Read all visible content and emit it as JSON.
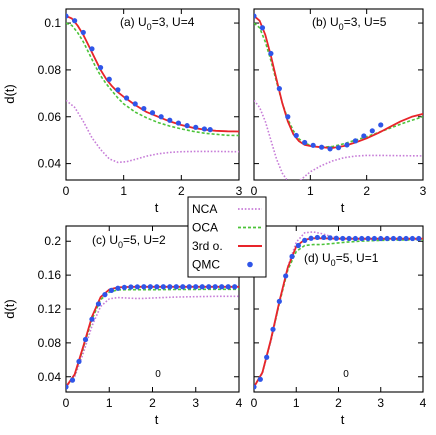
{
  "chart_data": [
    {
      "type": "line",
      "panel": "a",
      "annotation": "(a)",
      "params": [
        "U",
        "0",
        "=3, U=4"
      ],
      "ylabel": "d(t)",
      "xlabel": "t",
      "xlim": [
        0,
        3
      ],
      "ylim": [
        0.033,
        0.106
      ],
      "xticks": [
        "0",
        "1",
        "2",
        "3"
      ],
      "yticks": [
        0.04,
        0.06,
        0.08,
        0.1
      ],
      "ytick_labels": [
        "0.04",
        "0.06",
        "0.08",
        "0.1"
      ],
      "series": [
        {
          "name": "NCA",
          "x": [
            0,
            0.15,
            0.3,
            0.45,
            0.6,
            0.75,
            0.9,
            1.05,
            1.2,
            1.4,
            1.6,
            1.8,
            2.0,
            2.3,
            2.6,
            2.9,
            3.0
          ],
          "y": [
            0.067,
            0.064,
            0.058,
            0.051,
            0.046,
            0.042,
            0.0405,
            0.0408,
            0.0418,
            0.0432,
            0.0442,
            0.0448,
            0.0451,
            0.0452,
            0.0452,
            0.0451,
            0.0451
          ]
        },
        {
          "name": "OCA",
          "x": [
            0,
            0.1,
            0.2,
            0.3,
            0.4,
            0.5,
            0.6,
            0.7,
            0.8,
            0.9,
            1.0,
            1.2,
            1.4,
            1.6,
            1.8,
            2.0,
            2.2,
            2.4,
            2.6,
            2.8,
            3.0
          ],
          "y": [
            0.1,
            0.099,
            0.096,
            0.092,
            0.087,
            0.082,
            0.0775,
            0.074,
            0.071,
            0.068,
            0.0655,
            0.062,
            0.0595,
            0.0575,
            0.056,
            0.0548,
            0.0538,
            0.053,
            0.0525,
            0.0521,
            0.052
          ]
        },
        {
          "name": "3rd o.",
          "x": [
            0,
            0.1,
            0.2,
            0.3,
            0.4,
            0.5,
            0.6,
            0.7,
            0.8,
            0.9,
            1.0,
            1.2,
            1.4,
            1.6,
            1.8,
            2.0,
            2.2,
            2.4,
            2.6,
            2.8,
            3.0
          ],
          "y": [
            0.103,
            0.102,
            0.099,
            0.095,
            0.09,
            0.085,
            0.08,
            0.076,
            0.073,
            0.0705,
            0.0685,
            0.065,
            0.062,
            0.06,
            0.058,
            0.0565,
            0.0553,
            0.0545,
            0.054,
            0.0538,
            0.0537
          ]
        },
        {
          "name": "QMC",
          "x": [
            0,
            0.15,
            0.3,
            0.45,
            0.6,
            0.75,
            0.9,
            1.05,
            1.2,
            1.35,
            1.5,
            1.65,
            1.8,
            1.95,
            2.1,
            2.25,
            2.4,
            2.5
          ],
          "y": [
            0.103,
            0.101,
            0.096,
            0.089,
            0.081,
            0.076,
            0.0715,
            0.068,
            0.0655,
            0.0635,
            0.0617,
            0.06,
            0.0585,
            0.0573,
            0.0562,
            0.0555,
            0.0548,
            0.0545
          ]
        }
      ]
    },
    {
      "type": "line",
      "panel": "b",
      "annotation": "(b)",
      "params": [
        "U",
        "0",
        "=3, U=5"
      ],
      "ylabel": "",
      "xlabel": "t",
      "xlim": [
        0,
        3
      ],
      "ylim": [
        0.033,
        0.106
      ],
      "xticks": [
        "0",
        "1",
        "2",
        "3"
      ],
      "yticks": [
        0.04,
        0.06,
        0.08,
        0.1
      ],
      "ytick_labels": [],
      "series": [
        {
          "name": "NCA",
          "x": [
            0,
            0.1,
            0.2,
            0.3,
            0.4,
            0.5,
            0.6,
            0.7,
            0.8,
            0.9,
            1.0,
            1.2,
            1.4,
            1.6,
            1.8,
            2.0,
            2.2,
            2.5,
            3.0
          ],
          "y": [
            0.067,
            0.064,
            0.058,
            0.05,
            0.042,
            0.036,
            0.0325,
            0.0315,
            0.0325,
            0.0345,
            0.0365,
            0.0392,
            0.0412,
            0.0425,
            0.0432,
            0.0435,
            0.0435,
            0.0434,
            0.0433
          ]
        },
        {
          "name": "OCA",
          "x": [
            0,
            0.1,
            0.2,
            0.3,
            0.4,
            0.5,
            0.6,
            0.7,
            0.8,
            0.9,
            1.0,
            1.1,
            1.2,
            1.4,
            1.6,
            1.8,
            2.0,
            2.2,
            2.4,
            2.6,
            2.8,
            3.0
          ],
          "y": [
            0.1,
            0.098,
            0.092,
            0.084,
            0.075,
            0.066,
            0.059,
            0.054,
            0.0505,
            0.0488,
            0.0478,
            0.0472,
            0.047,
            0.0473,
            0.0485,
            0.05,
            0.0515,
            0.0532,
            0.055,
            0.0568,
            0.0585,
            0.06
          ]
        },
        {
          "name": "3rd o.",
          "x": [
            0,
            0.1,
            0.2,
            0.3,
            0.4,
            0.5,
            0.6,
            0.7,
            0.8,
            0.9,
            1.0,
            1.1,
            1.2,
            1.3,
            1.4,
            1.6,
            1.8,
            2.0,
            2.2,
            2.4,
            2.6,
            2.8,
            3.0
          ],
          "y": [
            0.103,
            0.101,
            0.095,
            0.086,
            0.076,
            0.066,
            0.058,
            0.0525,
            0.0495,
            0.048,
            0.0475,
            0.0472,
            0.047,
            0.0468,
            0.0467,
            0.0475,
            0.049,
            0.0508,
            0.053,
            0.0555,
            0.058,
            0.06,
            0.0612
          ]
        },
        {
          "name": "QMC",
          "x": [
            0,
            0.15,
            0.3,
            0.45,
            0.6,
            0.75,
            0.9,
            1.05,
            1.2,
            1.35,
            1.5,
            1.65,
            1.8,
            1.95,
            2.1,
            2.25
          ],
          "y": [
            0.103,
            0.098,
            0.087,
            0.072,
            0.06,
            0.052,
            0.049,
            0.0478,
            0.047,
            0.0463,
            0.0468,
            0.048,
            0.0497,
            0.0518,
            0.054,
            0.0565
          ]
        }
      ]
    },
    {
      "type": "line",
      "panel": "c",
      "annotation": "(c)",
      "params": [
        "U",
        "0",
        "=5, U=2"
      ],
      "ylabel": "d(t)",
      "xlabel": "t",
      "xlim": [
        0,
        4
      ],
      "ylim": [
        0.022,
        0.218
      ],
      "xticks": [
        "0",
        "1",
        "2",
        "3",
        "4"
      ],
      "yticks": [
        0.04,
        0.08,
        0.12,
        0.16,
        0.2
      ],
      "ytick_labels": [
        "0.04",
        "0.08",
        "0.12",
        "0.16",
        "0.2"
      ],
      "series": [
        {
          "name": "NCA",
          "x": [
            0,
            0.2,
            0.4,
            0.6,
            0.8,
            1.0,
            1.2,
            1.4,
            1.6,
            1.8,
            2.0,
            2.5,
            3.0,
            3.5,
            4.0
          ],
          "y": [
            0.028,
            0.04,
            0.068,
            0.1,
            0.123,
            0.132,
            0.1335,
            0.133,
            0.1325,
            0.1325,
            0.133,
            0.134,
            0.1345,
            0.135,
            0.135
          ]
        },
        {
          "name": "OCA",
          "x": [
            0,
            0.2,
            0.4,
            0.6,
            0.8,
            1.0,
            1.2,
            1.4,
            1.6,
            1.8,
            2.0,
            2.5,
            3.0,
            3.5,
            4.0
          ],
          "y": [
            0.028,
            0.042,
            0.074,
            0.108,
            0.131,
            0.14,
            0.1425,
            0.1428,
            0.1428,
            0.1428,
            0.1428,
            0.143,
            0.1432,
            0.1433,
            0.1433
          ]
        },
        {
          "name": "3rd o.",
          "x": [
            0,
            0.2,
            0.4,
            0.6,
            0.8,
            1.0,
            1.2,
            1.4,
            1.6,
            1.8,
            2.0,
            2.5,
            3.0,
            3.5,
            4.0
          ],
          "y": [
            0.028,
            0.043,
            0.076,
            0.111,
            0.134,
            0.143,
            0.1455,
            0.146,
            0.1462,
            0.1462,
            0.1462,
            0.1462,
            0.1462,
            0.1462,
            0.1462
          ]
        },
        {
          "name": "QMC",
          "x": [
            0,
            0.15,
            0.3,
            0.45,
            0.6,
            0.75,
            0.9,
            1.05,
            1.2,
            1.35,
            1.5,
            1.65,
            1.8,
            1.95,
            2.1,
            2.25,
            2.4,
            2.55,
            2.7,
            2.85,
            3.0,
            3.15,
            3.3,
            3.45,
            3.6,
            3.75,
            3.9
          ],
          "y": [
            0.028,
            0.036,
            0.058,
            0.084,
            0.108,
            0.126,
            0.137,
            0.142,
            0.1445,
            0.1455,
            0.146,
            0.1462,
            0.1463,
            0.1463,
            0.1463,
            0.1463,
            0.1463,
            0.1463,
            0.1463,
            0.1463,
            0.1463,
            0.1463,
            0.1463,
            0.1463,
            0.1463,
            0.1463,
            0.1463
          ]
        }
      ]
    },
    {
      "type": "line",
      "panel": "d",
      "annotation": "(d)",
      "params": [
        "U",
        "0",
        "=5, U=1"
      ],
      "ylabel": "",
      "xlabel": "t",
      "xlim": [
        0,
        4
      ],
      "ylim": [
        0.022,
        0.218
      ],
      "xticks": [
        "0",
        "1",
        "2",
        "3",
        "4"
      ],
      "yticks": [
        0.04,
        0.08,
        0.12,
        0.16,
        0.2
      ],
      "ytick_labels": [],
      "series": [
        {
          "name": "NCA",
          "x": [
            0,
            0.2,
            0.4,
            0.6,
            0.8,
            1.0,
            1.2,
            1.4,
            1.6,
            1.8,
            2.0,
            2.2,
            2.5,
            3.0,
            3.5,
            4.0
          ],
          "y": [
            0.028,
            0.044,
            0.082,
            0.127,
            0.17,
            0.199,
            0.21,
            0.211,
            0.209,
            0.206,
            0.204,
            0.203,
            0.2025,
            0.2023,
            0.2022,
            0.2022
          ]
        },
        {
          "name": "OCA",
          "x": [
            0,
            0.2,
            0.4,
            0.6,
            0.8,
            1.0,
            1.2,
            1.4,
            1.6,
            1.8,
            2.0,
            2.2,
            2.5,
            3.0,
            3.5,
            4.0
          ],
          "y": [
            0.028,
            0.045,
            0.083,
            0.127,
            0.166,
            0.188,
            0.195,
            0.196,
            0.1962,
            0.197,
            0.198,
            0.199,
            0.2,
            0.201,
            0.2015,
            0.2015
          ]
        },
        {
          "name": "3rd o.",
          "x": [
            0,
            0.2,
            0.4,
            0.6,
            0.8,
            1.0,
            1.2,
            1.4,
            1.6,
            1.8,
            2.0,
            2.2,
            2.5,
            3.0,
            3.5,
            4.0
          ],
          "y": [
            0.028,
            0.045,
            0.084,
            0.129,
            0.169,
            0.194,
            0.202,
            0.2035,
            0.2035,
            0.2032,
            0.203,
            0.203,
            0.203,
            0.203,
            0.203,
            0.203
          ]
        },
        {
          "name": "QMC",
          "x": [
            0,
            0.15,
            0.3,
            0.45,
            0.6,
            0.75,
            0.9,
            1.05,
            1.2,
            1.35,
            1.5,
            1.65,
            1.8,
            1.95,
            2.1,
            2.25,
            2.4,
            2.55,
            2.7,
            2.85,
            3.0,
            3.15,
            3.3,
            3.45,
            3.6,
            3.75,
            3.9
          ],
          "y": [
            0.028,
            0.037,
            0.063,
            0.096,
            0.129,
            0.159,
            0.182,
            0.195,
            0.201,
            0.2035,
            0.2045,
            0.2045,
            0.204,
            0.2035,
            0.2033,
            0.2032,
            0.2032,
            0.2032,
            0.2032,
            0.2032,
            0.2032,
            0.2032,
            0.2032,
            0.2032,
            0.2032,
            0.2032,
            0.2032
          ]
        }
      ]
    }
  ],
  "legend": {
    "items": [
      {
        "label": "NCA",
        "style": "dotted",
        "color": "#c77dd8"
      },
      {
        "label": "OCA",
        "style": "dashed",
        "color": "#4cc43a"
      },
      {
        "label": "3rd o.",
        "style": "solid",
        "color": "#e8242a"
      },
      {
        "label": "QMC",
        "style": "points",
        "color": "#2f55e8"
      }
    ]
  },
  "colors": {
    "NCA": "#c77dd8",
    "OCA": "#4cc43a",
    "3rd o.": "#e8242a",
    "QMC": "#2f55e8"
  }
}
